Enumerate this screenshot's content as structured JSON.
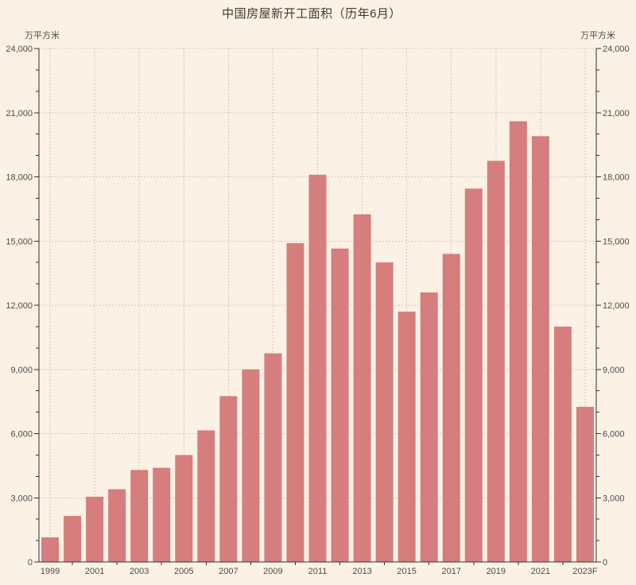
{
  "title": "中国房屋新开工面积（历年6月）",
  "left_axis_unit": "万平方米",
  "right_axis_unit": "万平方米",
  "colors": {
    "background": "#fbf1e5",
    "bar": "#d57e7d",
    "axis": "#333330",
    "grid": "#d3cabc",
    "tick_text": "#4c4c4c",
    "title_text": "#3d3b33"
  },
  "chart_data": {
    "type": "bar",
    "title": "中国房屋新开工面积（历年6月）",
    "xlabel": "",
    "ylabel": "万平方米",
    "ylabel_right": "万平方米",
    "categories": [
      "1999",
      "2000",
      "2001",
      "2002",
      "2003",
      "2004",
      "2005",
      "2006",
      "2007",
      "2008",
      "2009",
      "2010",
      "2011",
      "2012",
      "2013",
      "2014",
      "2015",
      "2016",
      "2017",
      "2018",
      "2019",
      "2020",
      "2021",
      "2022",
      "2023F"
    ],
    "values": [
      1150,
      2150,
      3050,
      3400,
      4300,
      4400,
      5000,
      6150,
      7750,
      9000,
      9750,
      14900,
      18100,
      14650,
      16250,
      14000,
      11700,
      12600,
      14400,
      17450,
      18750,
      20600,
      19900,
      11000,
      7250
    ],
    "ylim": [
      0,
      24000
    ],
    "y_major_tick_step": 3000,
    "y_minor_tick_step": 1000,
    "y_tick_labels": [
      "0",
      "3,000",
      "6,000",
      "9,000",
      "12,000",
      "15,000",
      "18,000",
      "21,000",
      "24,000"
    ],
    "x_tick_labels": [
      "1999",
      "2001",
      "2003",
      "2005",
      "2007",
      "2009",
      "2011",
      "2013",
      "2015",
      "2017",
      "2019",
      "2021",
      "2023F"
    ],
    "x_label_every": 2,
    "grid": "dashed horizontal lines at major y ticks, dashed vertical lines at labeled years",
    "legend": "none",
    "dual_y_axis": true
  }
}
